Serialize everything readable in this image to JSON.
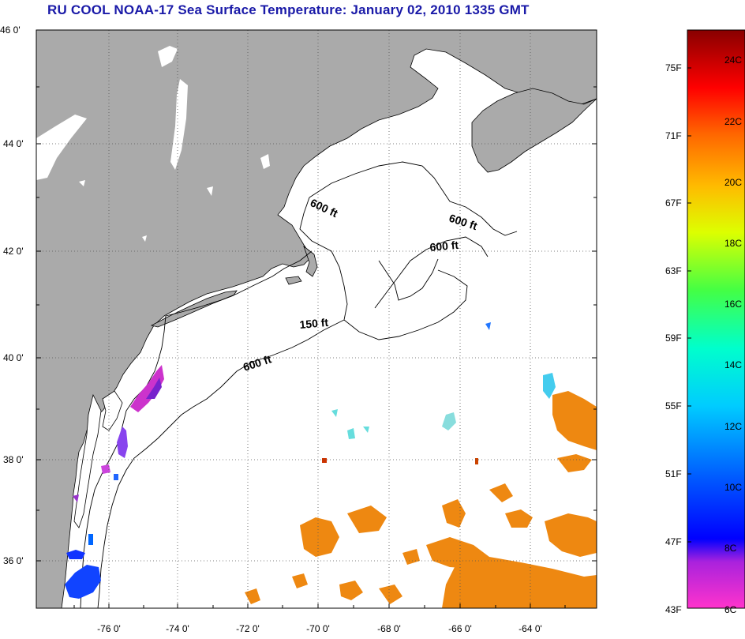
{
  "title": "RU COOL  NOAA-17  Sea Surface Temperature:  January 02, 2010 1335 GMT",
  "map": {
    "lat_labels": [
      "46 0'",
      "44 0'",
      "42 0'",
      "40 0'",
      "38 0'",
      "36 0'"
    ],
    "lon_labels": [
      "-76 0'",
      "-74 0'",
      "-72 0'",
      "-70 0'",
      "-68 0'",
      "-66 0'",
      "-64 0'"
    ],
    "contour_labels": [
      "600 ft",
      "600 ft",
      "600 ft",
      "150 ft",
      "600 ft"
    ],
    "colors": {
      "land": "#aaaaaa",
      "water": "#ffffff",
      "title": "#1a1aa8"
    }
  },
  "colorbar": {
    "fahrenheit_labels": [
      "75F",
      "71F",
      "67F",
      "63F",
      "59F",
      "55F",
      "51F",
      "47F",
      "43F"
    ],
    "celsius_labels": [
      "24C",
      "22C",
      "20C",
      "18C",
      "16C",
      "14C",
      "12C",
      "10C",
      "8C",
      "6C"
    ],
    "range_celsius": [
      6,
      25
    ]
  }
}
